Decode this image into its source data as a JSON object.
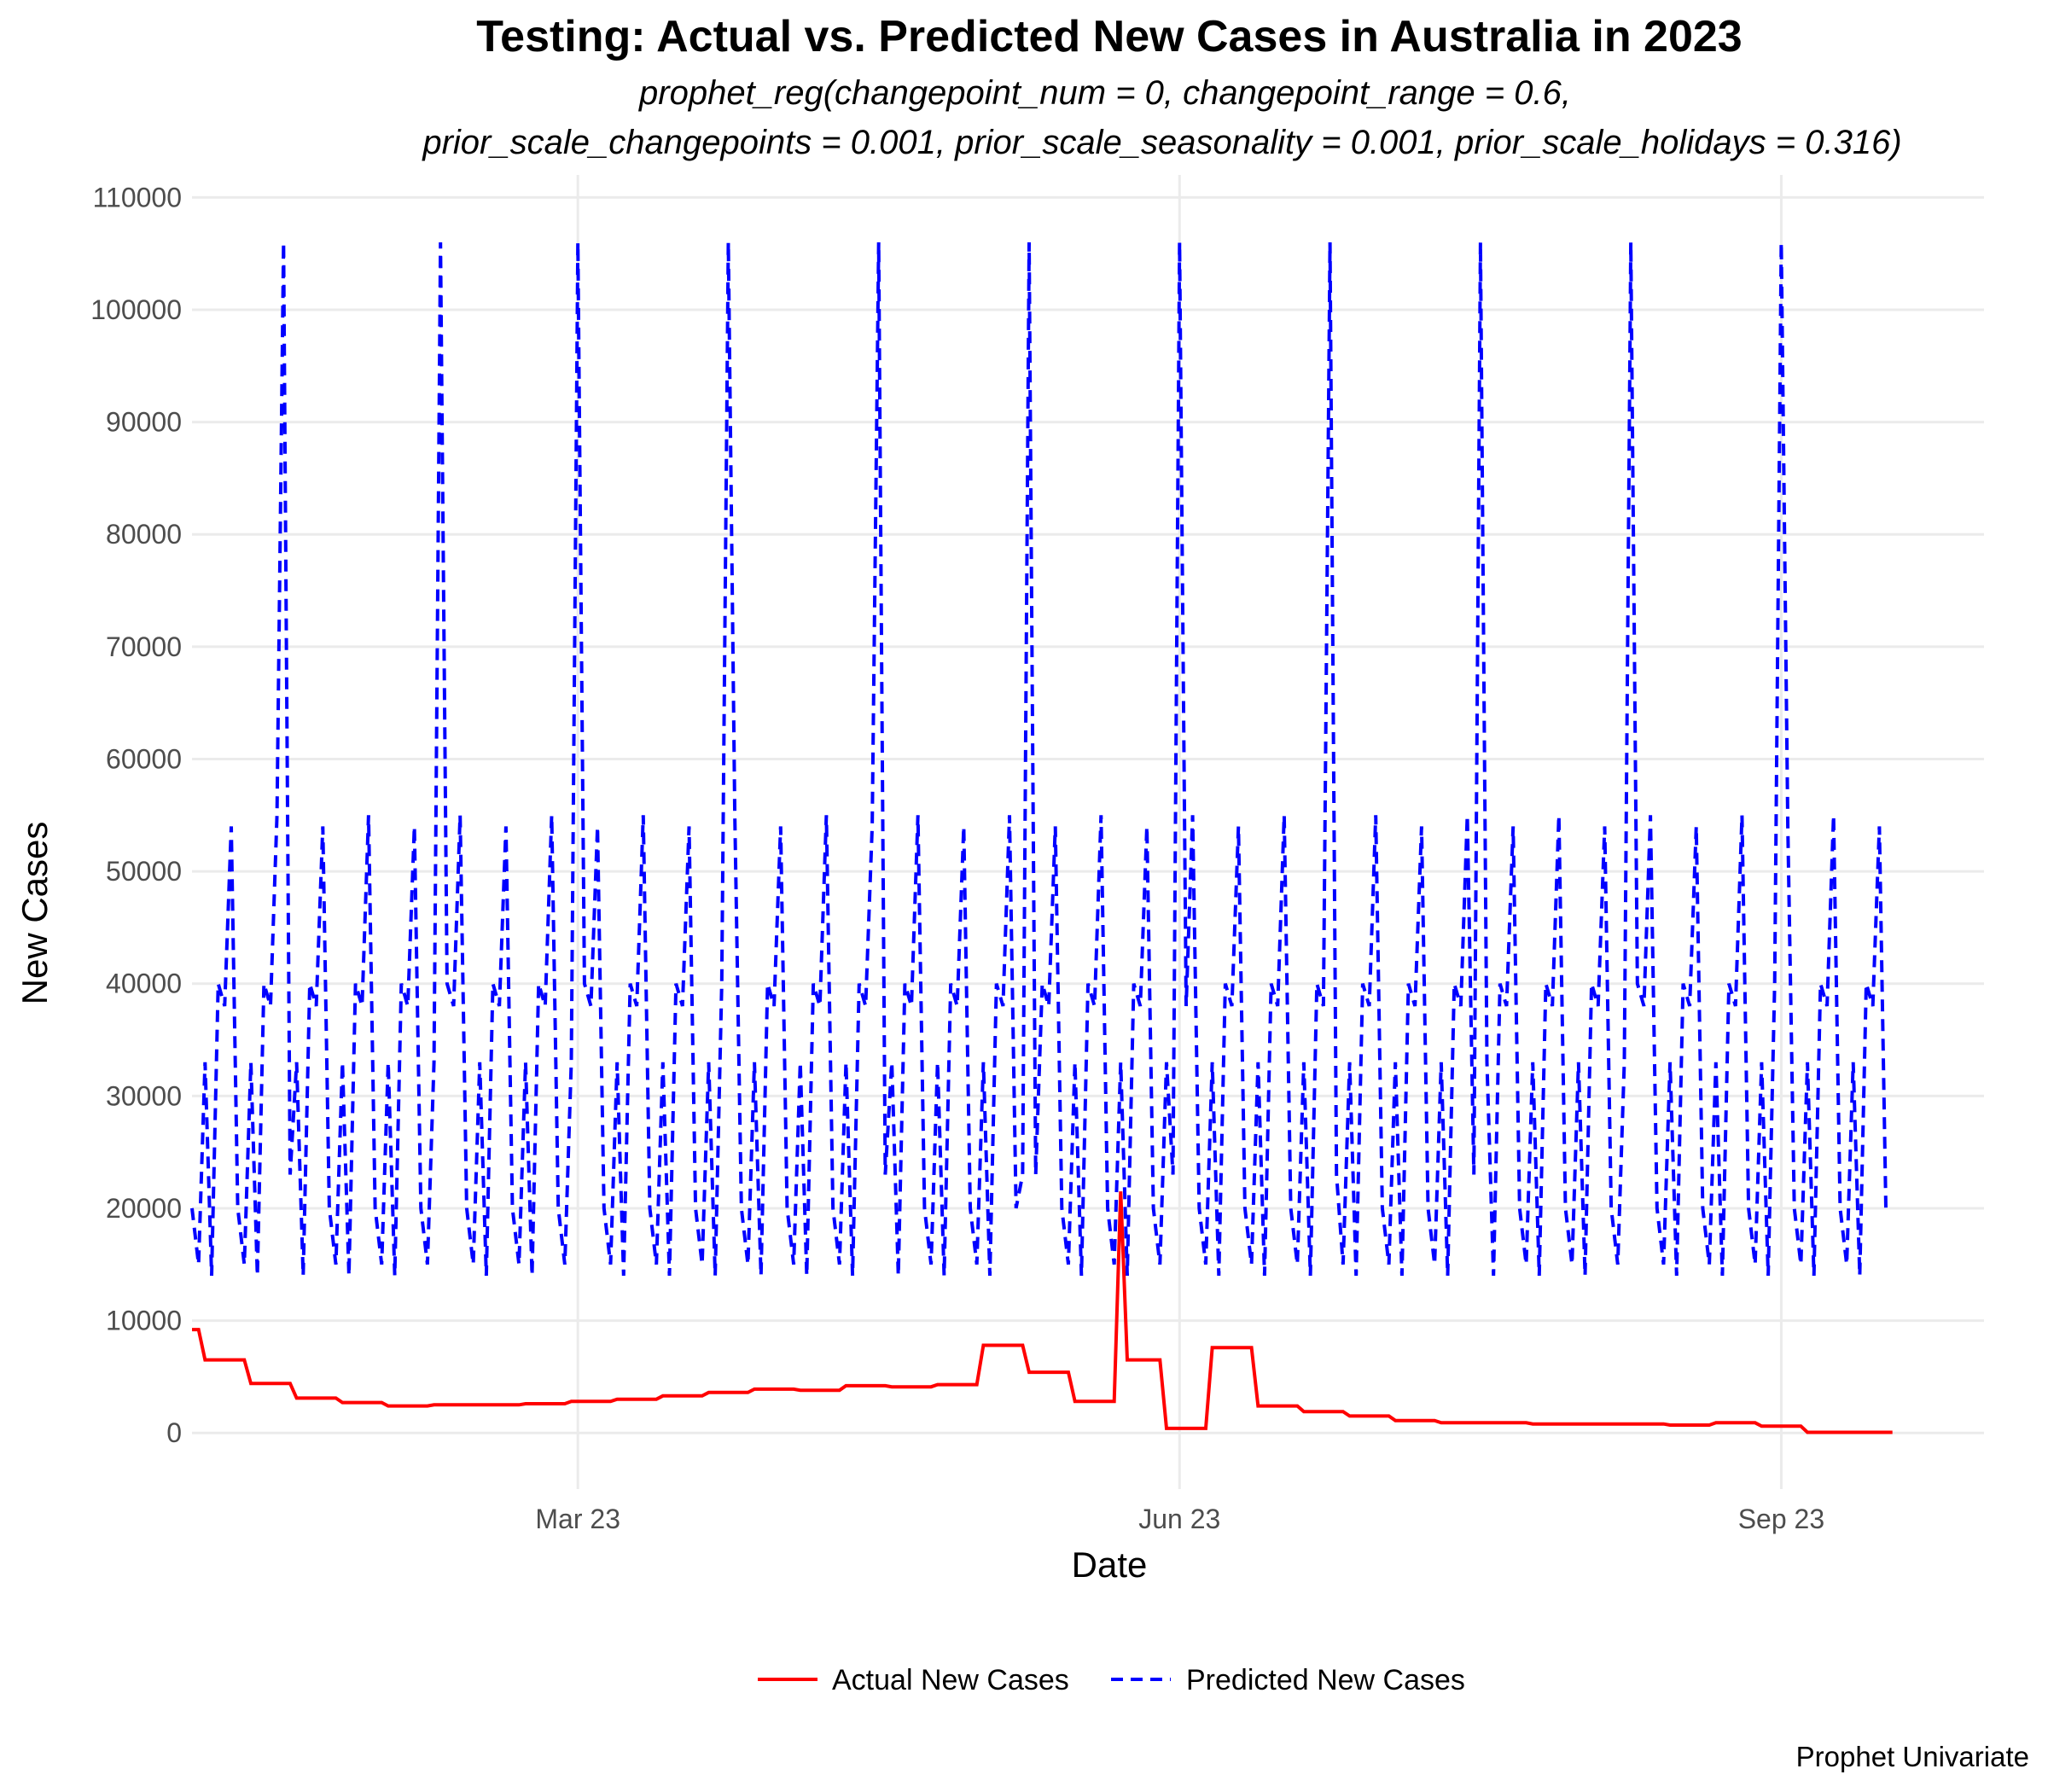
{
  "chart_data": {
    "type": "line",
    "title": "Testing: Actual vs. Predicted New Cases in Australia in 2023",
    "subtitle": [
      "prophet_reg(changepoint_num = 0, changepoint_range = 0.6,",
      "prior_scale_changepoints = 0.001, prior_scale_seasonality = 0.001, prior_scale_holidays = 0.316)"
    ],
    "xlabel": "Date",
    "ylabel": "New Cases",
    "caption": "Prophet Univariate",
    "x_range": [
      "2023-01-01",
      "2023-10-02"
    ],
    "ylim": [
      -5000,
      112000
    ],
    "y_ticks": [
      0,
      10000,
      20000,
      30000,
      40000,
      50000,
      60000,
      70000,
      80000,
      90000,
      100000,
      110000
    ],
    "y_tick_labels": [
      "0",
      "10000",
      "20000",
      "30000",
      "40000",
      "50000",
      "60000",
      "70000",
      "80000",
      "90000",
      "100000",
      "110000"
    ],
    "x_ticks": [
      {
        "date": "2023-03-01",
        "label": "Mar 23"
      },
      {
        "date": "2023-06-01",
        "label": "Jun 23"
      },
      {
        "date": "2023-09-01",
        "label": "Sep 23"
      }
    ],
    "grid": true,
    "legend_position": "bottom",
    "series": [
      {
        "name": "Actual New Cases",
        "color": "#ff0000",
        "dash": "solid",
        "points": [
          [
            "2023-01-01",
            9200
          ],
          [
            "2023-01-02",
            9200
          ],
          [
            "2023-01-03",
            6500
          ],
          [
            "2023-01-09",
            6500
          ],
          [
            "2023-01-10",
            4400
          ],
          [
            "2023-01-16",
            4400
          ],
          [
            "2023-01-17",
            3100
          ],
          [
            "2023-01-23",
            3100
          ],
          [
            "2023-01-24",
            2700
          ],
          [
            "2023-01-30",
            2700
          ],
          [
            "2023-01-31",
            2400
          ],
          [
            "2023-02-06",
            2400
          ],
          [
            "2023-02-07",
            2500
          ],
          [
            "2023-02-13",
            2500
          ],
          [
            "2023-02-14",
            2500
          ],
          [
            "2023-02-20",
            2500
          ],
          [
            "2023-02-21",
            2600
          ],
          [
            "2023-02-27",
            2600
          ],
          [
            "2023-02-28",
            2800
          ],
          [
            "2023-03-06",
            2800
          ],
          [
            "2023-03-07",
            3000
          ],
          [
            "2023-03-13",
            3000
          ],
          [
            "2023-03-14",
            3300
          ],
          [
            "2023-03-20",
            3300
          ],
          [
            "2023-03-21",
            3600
          ],
          [
            "2023-03-27",
            3600
          ],
          [
            "2023-03-28",
            3900
          ],
          [
            "2023-04-03",
            3900
          ],
          [
            "2023-04-04",
            3800
          ],
          [
            "2023-04-10",
            3800
          ],
          [
            "2023-04-11",
            4200
          ],
          [
            "2023-04-17",
            4200
          ],
          [
            "2023-04-18",
            4100
          ],
          [
            "2023-04-24",
            4100
          ],
          [
            "2023-04-25",
            4300
          ],
          [
            "2023-05-01",
            4300
          ],
          [
            "2023-05-02",
            7800
          ],
          [
            "2023-05-08",
            7800
          ],
          [
            "2023-05-09",
            5400
          ],
          [
            "2023-05-15",
            5400
          ],
          [
            "2023-05-16",
            2800
          ],
          [
            "2023-05-22",
            2800
          ],
          [
            "2023-05-23",
            21500
          ],
          [
            "2023-05-24",
            6500
          ],
          [
            "2023-05-29",
            6500
          ],
          [
            "2023-05-30",
            400
          ],
          [
            "2023-06-05",
            400
          ],
          [
            "2023-06-06",
            7600
          ],
          [
            "2023-06-12",
            7600
          ],
          [
            "2023-06-13",
            2400
          ],
          [
            "2023-06-19",
            2400
          ],
          [
            "2023-06-20",
            1900
          ],
          [
            "2023-06-26",
            1900
          ],
          [
            "2023-06-27",
            1500
          ],
          [
            "2023-07-03",
            1500
          ],
          [
            "2023-07-04",
            1100
          ],
          [
            "2023-07-10",
            1100
          ],
          [
            "2023-07-11",
            900
          ],
          [
            "2023-07-17",
            900
          ],
          [
            "2023-07-18",
            900
          ],
          [
            "2023-07-24",
            900
          ],
          [
            "2023-07-25",
            800
          ],
          [
            "2023-07-31",
            800
          ],
          [
            "2023-08-01",
            800
          ],
          [
            "2023-08-07",
            800
          ],
          [
            "2023-08-08",
            800
          ],
          [
            "2023-08-14",
            800
          ],
          [
            "2023-08-15",
            700
          ],
          [
            "2023-08-21",
            700
          ],
          [
            "2023-08-22",
            900
          ],
          [
            "2023-08-28",
            900
          ],
          [
            "2023-08-29",
            600
          ],
          [
            "2023-09-04",
            600
          ],
          [
            "2023-09-05",
            50
          ],
          [
            "2023-09-11",
            50
          ],
          [
            "2023-09-12",
            50
          ],
          [
            "2023-09-18",
            50
          ]
        ]
      },
      {
        "name": "Predicted New Cases",
        "color": "#0000ff",
        "dash": "dashed",
        "start_date": "2023-01-01",
        "end_date": "2023-09-18",
        "weekly_peak_dates": [
          "2023-01-15",
          "2023-02-08",
          "2023-03-01",
          "2023-03-24",
          "2023-04-16",
          "2023-05-09",
          "2023-06-01",
          "2023-06-24",
          "2023-07-17",
          "2023-08-09",
          "2023-09-01"
        ],
        "peak_value": 106000,
        "secondary_peak_value": 55000,
        "weekly_pattern": [
          20000,
          15000,
          33000,
          14000,
          40000,
          38000,
          54000
        ],
        "trough_value": 13800,
        "end_value": 20000
      }
    ]
  }
}
